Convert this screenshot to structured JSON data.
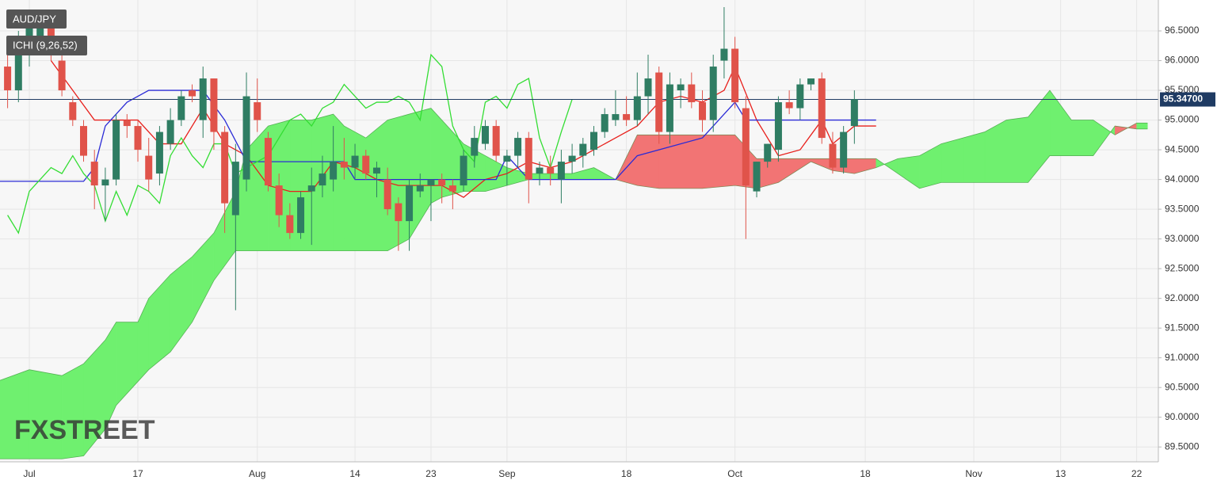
{
  "chart_data": {
    "type": "candlestick",
    "title": "AUD/JPY",
    "indicator": "ICHI (9,26,52)",
    "watermark": "FXSTREET",
    "up_color": "#2f7d63",
    "down_color": "#e0534a",
    "x": [
      -2,
      -1,
      0,
      1,
      2,
      3,
      4,
      5,
      6,
      7,
      8,
      9,
      10,
      11,
      12,
      13,
      14,
      15,
      16,
      17,
      18,
      19,
      20,
      21,
      22,
      23,
      24,
      25,
      26,
      27,
      28,
      29,
      30,
      31,
      32,
      33,
      34,
      35,
      36,
      37,
      38,
      39,
      40,
      41,
      42,
      43,
      44,
      45,
      46,
      47,
      48,
      49,
      50,
      51,
      52,
      53,
      54,
      55,
      56,
      57,
      58,
      59,
      60,
      61,
      62,
      63,
      64,
      65,
      66,
      67,
      68,
      69,
      70,
      71,
      72,
      73,
      74,
      75,
      76
    ],
    "open": [
      95.9,
      95.5,
      96.2,
      96.4,
      96.6,
      96.0,
      95.3,
      94.9,
      94.3,
      93.9,
      94.0,
      95.0,
      94.9,
      94.4,
      94.1,
      94.6,
      95.0,
      95.5,
      95.0,
      95.7,
      94.8,
      93.4,
      94.0,
      95.3,
      94.7,
      93.9,
      93.4,
      93.1,
      93.8,
      93.9,
      94.0,
      94.3,
      94.2,
      94.4,
      94.1,
      94.0,
      93.6,
      93.3,
      93.8,
      93.9,
      94.0,
      93.9,
      93.9,
      94.4,
      94.6,
      94.9,
      94.3,
      94.4,
      94.7,
      94.1,
      94.2,
      94.0,
      94.3,
      94.4,
      94.5,
      94.8,
      95.0,
      95.1,
      95.0,
      95.4,
      95.8,
      94.8,
      95.5,
      95.6,
      95.3,
      95.0,
      96.0,
      96.2,
      95.2,
      93.8,
      94.3,
      94.5,
      95.3,
      95.2,
      95.6,
      95.7,
      94.6,
      94.2,
      94.9
    ],
    "high": [
      96.3,
      96.5,
      96.7,
      96.8,
      96.8,
      96.1,
      95.4,
      95.0,
      94.5,
      94.2,
      95.1,
      95.1,
      95.0,
      94.7,
      94.9,
      95.2,
      95.5,
      95.6,
      95.9,
      95.7,
      94.9,
      94.6,
      95.8,
      95.7,
      94.8,
      94.1,
      93.6,
      93.8,
      94.2,
      94.4,
      94.9,
      94.7,
      94.6,
      94.5,
      94.3,
      94.2,
      93.7,
      94.0,
      94.1,
      94.0,
      94.1,
      94.0,
      94.5,
      94.9,
      95.0,
      95.0,
      94.5,
      94.8,
      94.8,
      94.3,
      94.4,
      94.5,
      94.6,
      94.7,
      94.9,
      95.2,
      95.5,
      95.4,
      95.8,
      96.1,
      95.9,
      95.8,
      95.7,
      95.8,
      95.5,
      96.1,
      96.9,
      96.4,
      95.4,
      94.3,
      94.6,
      95.4,
      95.5,
      95.7,
      95.7,
      95.8,
      94.8,
      94.9,
      95.5
    ],
    "low": [
      95.2,
      95.3,
      95.9,
      96.1,
      96.0,
      95.4,
      94.9,
      94.3,
      93.5,
      93.3,
      93.9,
      94.7,
      94.3,
      93.8,
      93.9,
      94.5,
      94.9,
      95.3,
      94.7,
      94.5,
      93.1,
      91.8,
      93.8,
      94.8,
      93.8,
      93.2,
      93.0,
      93.0,
      92.9,
      93.7,
      93.8,
      94.0,
      94.0,
      94.0,
      93.7,
      93.4,
      92.8,
      92.8,
      93.7,
      93.3,
      93.6,
      93.5,
      93.8,
      94.2,
      94.5,
      94.3,
      93.9,
      94.2,
      93.6,
      93.9,
      93.9,
      93.6,
      94.1,
      94.2,
      94.4,
      94.7,
      94.9,
      94.9,
      94.9,
      95.1,
      94.6,
      94.6,
      95.2,
      95.2,
      94.8,
      94.8,
      95.7,
      95.2,
      93.0,
      93.7,
      94.2,
      94.3,
      95.1,
      95.0,
      95.5,
      94.6,
      94.1,
      94.1,
      94.6
    ],
    "close": [
      95.5,
      96.3,
      96.6,
      96.7,
      96.1,
      95.5,
      95.0,
      94.4,
      93.9,
      94.0,
      95.0,
      94.9,
      94.5,
      94.0,
      94.8,
      95.0,
      95.4,
      95.4,
      95.7,
      94.8,
      93.6,
      94.3,
      95.4,
      95.0,
      93.9,
      93.4,
      93.1,
      93.7,
      93.9,
      94.1,
      94.3,
      94.2,
      94.4,
      94.1,
      94.2,
      93.5,
      93.3,
      93.9,
      93.9,
      94.0,
      93.9,
      93.8,
      94.4,
      94.7,
      94.9,
      94.4,
      94.4,
      94.7,
      94.0,
      94.2,
      94.1,
      94.3,
      94.4,
      94.6,
      94.8,
      95.1,
      95.1,
      95.0,
      95.4,
      95.7,
      94.8,
      95.6,
      95.6,
      95.3,
      95.0,
      95.9,
      96.2,
      95.3,
      93.9,
      94.3,
      94.6,
      95.3,
      95.2,
      95.6,
      95.7,
      94.7,
      94.2,
      94.8,
      95.35
    ],
    "lines": [
      {
        "color": "#e8201c",
        "x": [
          2,
          4,
          6,
          8,
          10,
          12,
          14,
          16,
          18,
          20,
          22,
          24,
          26,
          28,
          30,
          32,
          34,
          36,
          38,
          40,
          42,
          44,
          46,
          48,
          50,
          52,
          54,
          56,
          58,
          60,
          62,
          64,
          65,
          67,
          69,
          71,
          73,
          74,
          76,
          78
        ],
        "values": [
          96.0,
          95.5,
          95.0,
          95.0,
          95.0,
          94.6,
          94.6,
          95.2,
          94.6,
          94.4,
          93.9,
          93.8,
          93.8,
          94.3,
          94.2,
          94.0,
          93.9,
          93.9,
          93.9,
          93.7,
          94.0,
          94.1,
          94.3,
          94.2,
          94.3,
          94.5,
          94.7,
          94.9,
          95.3,
          95.4,
          95.3,
          95.5,
          95.9,
          95.0,
          94.4,
          94.5,
          95.0,
          94.6,
          94.9,
          94.9
        ]
      },
      {
        "color": "#2b2bd6",
        "x": [
          -3,
          5,
          6,
          7,
          9,
          11,
          16,
          18,
          20,
          23,
          29,
          30,
          43,
          44,
          46,
          54,
          56,
          62,
          64,
          65,
          66,
          78
        ],
        "values": [
          93.97,
          93.97,
          94.2,
          94.9,
          95.3,
          95.5,
          95.5,
          95.0,
          94.3,
          94.3,
          94.3,
          94.0,
          94.0,
          94.4,
          94.0,
          94.0,
          94.4,
          94.7,
          95.1,
          95.3,
          95.0,
          95.0
        ]
      },
      {
        "color": "#33dd33",
        "x": [
          -2,
          -1,
          0,
          1,
          2,
          3,
          4,
          5,
          6,
          7,
          8,
          9,
          10,
          11,
          12,
          13,
          14,
          15,
          16,
          17,
          18,
          19,
          20,
          21,
          22,
          23,
          24,
          25,
          26,
          27,
          28,
          29,
          30,
          31,
          32,
          33,
          34,
          35,
          36,
          37,
          38,
          39,
          40,
          41,
          42,
          43,
          44,
          45,
          46,
          47,
          48,
          49,
          50
        ],
        "values": [
          93.4,
          93.1,
          93.8,
          94.0,
          94.2,
          94.1,
          94.4,
          94.1,
          93.9,
          93.3,
          93.8,
          93.4,
          93.9,
          93.8,
          93.6,
          94.4,
          94.7,
          94.4,
          94.2,
          94.6,
          94.6,
          94.1,
          94.2,
          94.3,
          94.4,
          94.7,
          95.0,
          95.1,
          94.9,
          95.2,
          95.3,
          95.6,
          95.4,
          95.2,
          95.3,
          95.3,
          95.4,
          95.3,
          95.0,
          96.1,
          95.9,
          94.9,
          94.5,
          94.3,
          95.3,
          95.4,
          95.2,
          95.6,
          95.7,
          94.7,
          94.2,
          94.8,
          95.35
        ]
      }
    ],
    "cloud": {
      "up_color": "#6ff06f",
      "down_color": "#f27474",
      "edge_color": "#3a8a3a",
      "x": [
        -3,
        0,
        3,
        5,
        7,
        8,
        10,
        11,
        13,
        15,
        17,
        19,
        20,
        22,
        24,
        26,
        28,
        29,
        31,
        33,
        35,
        37,
        38,
        40,
        42,
        44,
        46,
        50,
        52,
        54,
        56,
        58,
        62,
        65,
        67,
        69,
        72,
        74,
        76,
        78,
        80,
        82,
        84,
        86,
        88,
        90,
        92,
        94,
        96,
        98,
        100,
        102,
        103
      ],
      "span_a": [
        90.6,
        90.8,
        90.7,
        90.9,
        91.3,
        91.6,
        91.6,
        92.0,
        92.4,
        92.7,
        93.1,
        93.8,
        94.5,
        94.9,
        95.0,
        95.0,
        95.1,
        94.9,
        94.7,
        95.0,
        95.1,
        95.2,
        95.0,
        94.6,
        94.4,
        94.2,
        94.1,
        94.1,
        94.2,
        94.0,
        93.9,
        93.85,
        93.85,
        93.9,
        93.85,
        93.95,
        94.3,
        94.15,
        94.1,
        94.2,
        94.35,
        94.4,
        94.6,
        94.7,
        94.8,
        95.0,
        95.05,
        95.5,
        95.0,
        95.0,
        94.75,
        94.95,
        94.95
      ],
      "span_b": [
        89.3,
        89.3,
        89.3,
        89.35,
        89.8,
        90.2,
        90.6,
        90.8,
        91.1,
        91.6,
        92.3,
        92.8,
        92.8,
        92.8,
        92.8,
        92.8,
        92.8,
        92.8,
        92.8,
        92.8,
        93.0,
        93.6,
        93.7,
        93.8,
        93.8,
        93.9,
        94.0,
        94.0,
        94.0,
        94.0,
        94.75,
        94.75,
        94.75,
        94.75,
        94.35,
        94.35,
        94.35,
        94.35,
        94.35,
        94.35,
        94.1,
        93.85,
        93.95,
        93.95,
        93.95,
        93.95,
        93.95,
        94.4,
        94.4,
        94.4,
        94.9,
        94.85,
        94.85
      ]
    },
    "last_price": {
      "value": 95.347,
      "label": "95.34700"
    },
    "last_price_color": "#1f3b63",
    "xlim": [
      -2.7,
      104
    ],
    "ylim": [
      89.25,
      97.02
    ],
    "xticks": [
      {
        "value": 0,
        "label": "Jul"
      },
      {
        "value": 10,
        "label": "17"
      },
      {
        "value": 21,
        "label": "Aug"
      },
      {
        "value": 30,
        "label": "14"
      },
      {
        "value": 37,
        "label": "23"
      },
      {
        "value": 44,
        "label": "Sep"
      },
      {
        "value": 55,
        "label": "18"
      },
      {
        "value": 65,
        "label": "Oct"
      },
      {
        "value": 77,
        "label": "18"
      },
      {
        "value": 87,
        "label": "Nov"
      },
      {
        "value": 95,
        "label": "13"
      },
      {
        "value": 102,
        "label": "22"
      }
    ],
    "yticks": [
      {
        "value": 89.5,
        "label": "89.5000"
      },
      {
        "value": 90,
        "label": "90.0000"
      },
      {
        "value": 90.5,
        "label": "90.5000"
      },
      {
        "value": 91,
        "label": "91.0000"
      },
      {
        "value": 91.5,
        "label": "91.5000"
      },
      {
        "value": 92,
        "label": "92.0000"
      },
      {
        "value": 92.5,
        "label": "92.5000"
      },
      {
        "value": 93,
        "label": "93.0000"
      },
      {
        "value": 93.5,
        "label": "93.5000"
      },
      {
        "value": 94,
        "label": "94.0000"
      },
      {
        "value": 94.5,
        "label": "94.5000"
      },
      {
        "value": 95,
        "label": "95.0000"
      },
      {
        "value": 95.5,
        "label": "95.5000"
      },
      {
        "value": 96,
        "label": "96.0000"
      },
      {
        "value": 96.5,
        "label": "96.5000"
      }
    ],
    "grid": true
  }
}
